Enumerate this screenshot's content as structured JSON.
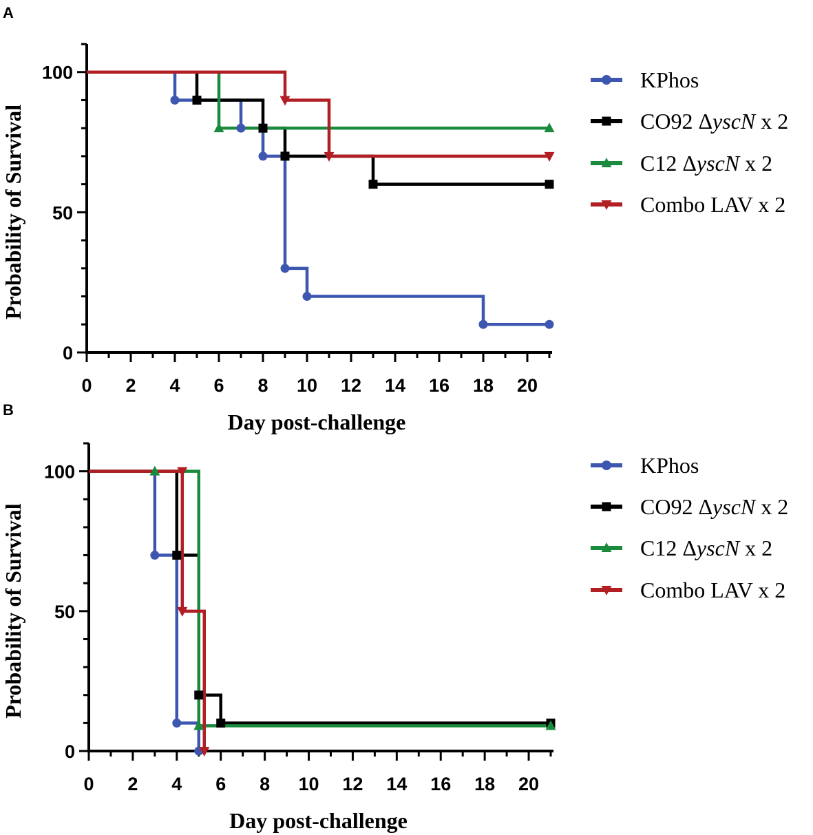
{
  "figure": {
    "panels": [
      "A",
      "B"
    ]
  },
  "chart_data": [
    {
      "panel": "A",
      "type": "line",
      "subtype": "kaplan-meier step",
      "xlabel": "Day post-challenge",
      "ylabel": "Probability of Survival",
      "xlim": [
        0,
        21
      ],
      "ylim": [
        0,
        110
      ],
      "xticks": [
        0,
        2,
        4,
        6,
        8,
        10,
        12,
        14,
        16,
        18,
        20
      ],
      "yticks": [
        0,
        50,
        100
      ],
      "series": [
        {
          "name": "KPhos",
          "suffix": "",
          "italic": "",
          "tail": "",
          "color": "#3d56b0",
          "marker": "circle",
          "steps": [
            [
              0,
              100
            ],
            [
              4,
              90
            ],
            [
              7,
              80
            ],
            [
              8,
              70
            ],
            [
              9,
              30
            ],
            [
              10,
              20
            ],
            [
              18,
              10
            ],
            [
              21,
              10
            ]
          ],
          "markers": [
            [
              4,
              90
            ],
            [
              7,
              80
            ],
            [
              8,
              70
            ],
            [
              9,
              30
            ],
            [
              10,
              20
            ],
            [
              18,
              10
            ],
            [
              21,
              10
            ]
          ]
        },
        {
          "name": "CO92 ",
          "suffix": "Δ",
          "italic": "yscN",
          "tail": " x 2",
          "color": "#000000",
          "marker": "square",
          "steps": [
            [
              0,
              100
            ],
            [
              5,
              90
            ],
            [
              8,
              80
            ],
            [
              9,
              70
            ],
            [
              13,
              60
            ],
            [
              21,
              60
            ]
          ],
          "markers": [
            [
              5,
              90
            ],
            [
              8,
              80
            ],
            [
              9,
              70
            ],
            [
              13,
              60
            ],
            [
              21,
              60
            ]
          ]
        },
        {
          "name": "C12 ",
          "suffix": "Δ",
          "italic": "yscN",
          "tail": " x 2",
          "color": "#1a8a3c",
          "marker": "triangle-up",
          "steps": [
            [
              0,
              100
            ],
            [
              6,
              80
            ],
            [
              21,
              80
            ]
          ],
          "markers": [
            [
              6,
              80
            ],
            [
              21,
              80
            ]
          ]
        },
        {
          "name": "Combo LAV x 2",
          "suffix": "",
          "italic": "",
          "tail": "",
          "color": "#b11f24",
          "marker": "triangle-down",
          "steps": [
            [
              0,
              100
            ],
            [
              9,
              90
            ],
            [
              11,
              70
            ],
            [
              21,
              70
            ]
          ],
          "markers": [
            [
              9,
              90
            ],
            [
              11,
              70
            ],
            [
              21,
              70
            ]
          ]
        }
      ]
    },
    {
      "panel": "B",
      "type": "line",
      "subtype": "kaplan-meier step",
      "xlabel": "Day post-challenge",
      "ylabel": "Probability of Survival",
      "xlim": [
        0,
        21
      ],
      "ylim": [
        0,
        110
      ],
      "xticks": [
        0,
        2,
        4,
        6,
        8,
        10,
        12,
        14,
        16,
        18,
        20
      ],
      "yticks": [
        0,
        50,
        100
      ],
      "series": [
        {
          "name": "KPhos",
          "suffix": "",
          "italic": "",
          "tail": "",
          "color": "#3d56b0",
          "marker": "circle",
          "steps": [
            [
              0,
              100
            ],
            [
              3,
              70
            ],
            [
              4,
              10
            ],
            [
              5,
              0
            ]
          ],
          "markers": [
            [
              3,
              70
            ],
            [
              4,
              70
            ],
            [
              4,
              10
            ],
            [
              5,
              0
            ]
          ]
        },
        {
          "name": "CO92 ",
          "suffix": "Δ",
          "italic": "yscN",
          "tail": " x 2",
          "color": "#000000",
          "marker": "square",
          "steps": [
            [
              0,
              100
            ],
            [
              4,
              70
            ],
            [
              5,
              20
            ],
            [
              6,
              10
            ],
            [
              21,
              10
            ]
          ],
          "markers": [
            [
              4,
              70
            ],
            [
              5,
              20
            ],
            [
              6,
              10
            ],
            [
              21,
              10
            ]
          ]
        },
        {
          "name": "C12 ",
          "suffix": "Δ",
          "italic": "yscN",
          "tail": " x 2",
          "color": "#1a8a3c",
          "marker": "triangle-up",
          "steps": [
            [
              0,
              100
            ],
            [
              5,
              9
            ],
            [
              21,
              9
            ]
          ],
          "markers": [
            [
              3,
              100
            ],
            [
              5,
              9
            ],
            [
              21,
              9
            ]
          ]
        },
        {
          "name": "Combo LAV x 2",
          "suffix": "",
          "italic": "",
          "tail": "",
          "color": "#b11f24",
          "marker": "triangle-down",
          "steps": [
            [
              0,
              100
            ],
            [
              4.25,
              50
            ],
            [
              5.25,
              0
            ]
          ],
          "markers": [
            [
              4.25,
              100
            ],
            [
              4.25,
              50
            ],
            [
              5.25,
              0
            ]
          ]
        }
      ]
    }
  ]
}
